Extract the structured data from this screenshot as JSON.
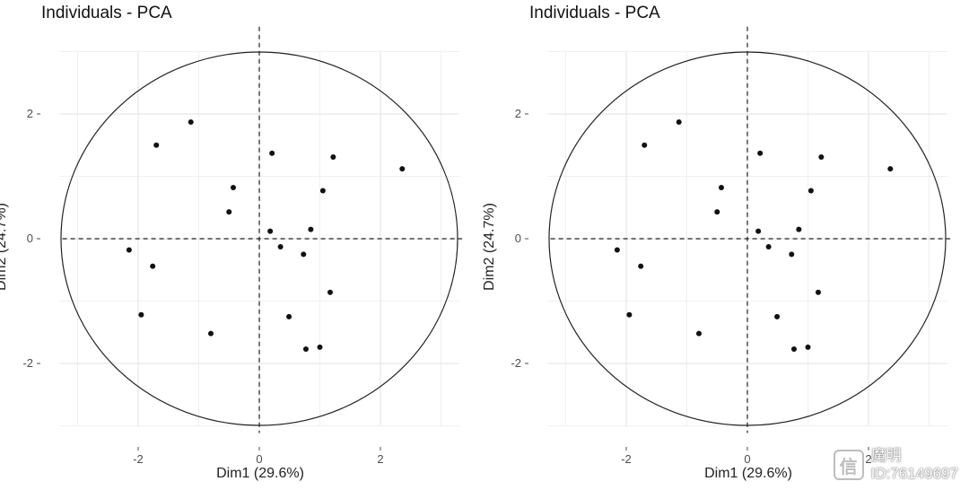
{
  "chart_data": [
    {
      "type": "scatter",
      "title": "Individuals - PCA",
      "xlabel": "Dim1 (29.6%)",
      "ylabel": "Dim2 (24.7%)",
      "xlim": [
        -3.3,
        3.3
      ],
      "ylim": [
        -3.0,
        3.0
      ],
      "xticks": [
        -2,
        0,
        2
      ],
      "yticks": [
        -2,
        0,
        2
      ],
      "grid": true,
      "reference_lines": "dashed at x=0 and y=0",
      "circle": "enclosing circle around origin",
      "points": [
        {
          "x": -1.13,
          "y": 1.87
        },
        {
          "x": -1.7,
          "y": 1.5
        },
        {
          "x": 0.21,
          "y": 1.37
        },
        {
          "x": 1.22,
          "y": 1.31
        },
        {
          "x": 2.36,
          "y": 1.12
        },
        {
          "x": -0.43,
          "y": 0.82
        },
        {
          "x": 1.05,
          "y": 0.77
        },
        {
          "x": -0.5,
          "y": 0.43
        },
        {
          "x": 0.18,
          "y": 0.12
        },
        {
          "x": 0.85,
          "y": 0.15
        },
        {
          "x": 0.35,
          "y": -0.13
        },
        {
          "x": 0.73,
          "y": -0.25
        },
        {
          "x": -2.15,
          "y": -0.18
        },
        {
          "x": -1.76,
          "y": -0.44
        },
        {
          "x": 1.17,
          "y": -0.86
        },
        {
          "x": -1.95,
          "y": -1.22
        },
        {
          "x": 0.49,
          "y": -1.25
        },
        {
          "x": -0.8,
          "y": -1.52
        },
        {
          "x": 0.77,
          "y": -1.77
        },
        {
          "x": 1.0,
          "y": -1.74
        }
      ]
    },
    {
      "type": "scatter",
      "title": "Individuals - PCA",
      "xlabel": "Dim1 (29.6%)",
      "ylabel": "Dim2 (24.7%)",
      "xlim": [
        -3.3,
        3.3
      ],
      "ylim": [
        -3.0,
        3.0
      ],
      "xticks": [
        -2,
        0,
        2
      ],
      "yticks": [
        -2,
        0,
        2
      ],
      "grid": true,
      "reference_lines": "dashed at x=0 and y=0",
      "circle": "enclosing circle around origin",
      "points": [
        {
          "x": -1.13,
          "y": 1.87
        },
        {
          "x": -1.7,
          "y": 1.5
        },
        {
          "x": 0.21,
          "y": 1.37
        },
        {
          "x": 1.22,
          "y": 1.31
        },
        {
          "x": 2.36,
          "y": 1.12
        },
        {
          "x": -0.43,
          "y": 0.82
        },
        {
          "x": 1.05,
          "y": 0.77
        },
        {
          "x": -0.5,
          "y": 0.43
        },
        {
          "x": 0.18,
          "y": 0.12
        },
        {
          "x": 0.85,
          "y": 0.15
        },
        {
          "x": 0.35,
          "y": -0.13
        },
        {
          "x": 0.73,
          "y": -0.25
        },
        {
          "x": -2.15,
          "y": -0.18
        },
        {
          "x": -1.76,
          "y": -0.44
        },
        {
          "x": 1.17,
          "y": -0.86
        },
        {
          "x": -1.95,
          "y": -1.22
        },
        {
          "x": 0.49,
          "y": -1.25
        },
        {
          "x": -0.8,
          "y": -1.52
        },
        {
          "x": 0.77,
          "y": -1.77
        },
        {
          "x": 1.0,
          "y": -1.74
        }
      ]
    }
  ],
  "watermark": {
    "name": "魔明",
    "id_text": "ID:76149697"
  }
}
